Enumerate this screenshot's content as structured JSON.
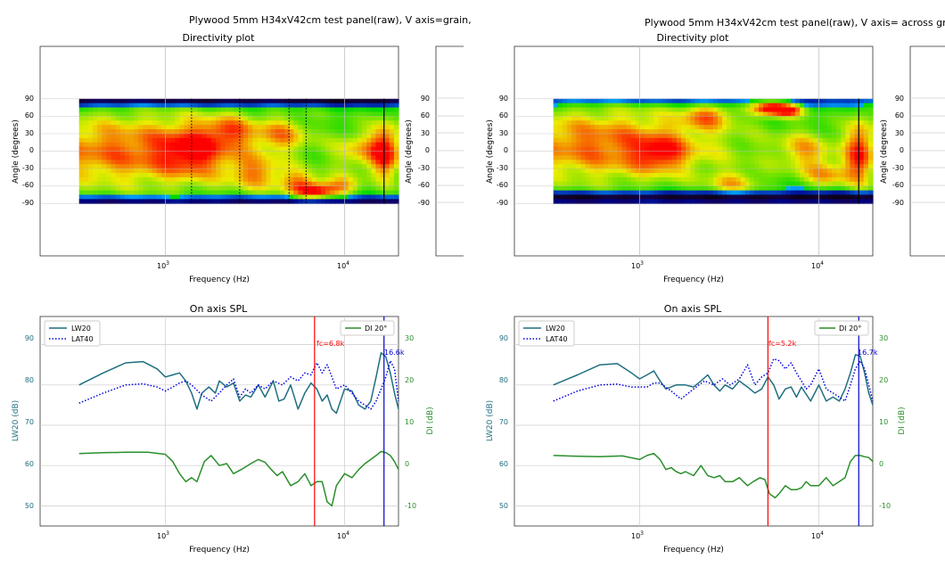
{
  "figures": [
    {
      "suptitle": "Plywood 5mm H34xV42cm test panel(raw), V axis=grain,",
      "directivity": {
        "title": "Directivity plot",
        "xlabel": "Frequency (Hz)",
        "ylabel": "Angle (degrees)",
        "ytick_labels": [
          "90",
          "60",
          "30",
          "0",
          "-30",
          "-60",
          "-90"
        ],
        "xtick_labels": [
          "10",
          "10"
        ],
        "xtick_exponents": [
          "3",
          "4"
        ]
      },
      "spl": {
        "title": "On axis SPL",
        "xlabel": "Frequency (Hz)",
        "ylabel_left": "LW20 (dB)",
        "ylabel_right": "DI (dB)",
        "left_ticks": [
          "50",
          "60",
          "70",
          "80",
          "90"
        ],
        "right_ticks": [
          "-10",
          "0",
          "10",
          "20",
          "30"
        ],
        "xtick_labels": [
          "10",
          "10"
        ],
        "xtick_exponents": [
          "3",
          "4"
        ],
        "legend_left": [
          "LW20",
          "LAT40"
        ],
        "legend_right": [
          "DI 20°"
        ],
        "fc_label": "fc=6.8k",
        "peak_label": "16.6k"
      }
    },
    {
      "suptitle": "Plywood 5mm H34xV42cm test panel(raw), V axis= across gr",
      "directivity": {
        "title": "Directivity plot",
        "xlabel": "Frequency (Hz)",
        "ylabel": "Angle (degrees)",
        "ytick_labels": [
          "90",
          "60",
          "30",
          "0",
          "-30",
          "-60",
          "-90"
        ],
        "xtick_labels": [
          "10",
          "10"
        ],
        "xtick_exponents": [
          "3",
          "4"
        ]
      },
      "spl": {
        "title": "On axis SPL",
        "xlabel": "Frequency (Hz)",
        "ylabel_left": "LW20 (dB)",
        "ylabel_right": "DI (dB)",
        "left_ticks": [
          "50",
          "60",
          "70",
          "80",
          "90"
        ],
        "right_ticks": [
          "-10",
          "0",
          "10",
          "20",
          "30"
        ],
        "xtick_labels": [
          "10",
          "10"
        ],
        "xtick_exponents": [
          "3",
          "4"
        ],
        "legend_left": [
          "LW20",
          "LAT40"
        ],
        "legend_right": [
          "DI 20°"
        ],
        "fc_label": "fc=5.2k",
        "peak_label": "16.7k"
      }
    }
  ],
  "chart_data": [
    {
      "type": "heatmap",
      "title": "Directivity plot",
      "xlabel": "Frequency (Hz)",
      "ylabel": "Angle (degrees)",
      "x_scale": "log",
      "xlim": [
        200,
        20000
      ],
      "ylim": [
        -180,
        180
      ],
      "yticks": [
        90,
        60,
        30,
        0,
        -30,
        -60,
        -90
      ],
      "extent_x": [
        330,
        20000
      ],
      "extent_y": [
        -90,
        90
      ],
      "vertical_markers_hz": [
        1400,
        2600,
        4900,
        6100
      ],
      "vertical_marker_style": "dotted",
      "solid_marker_hz": 16600,
      "hotspots": [
        {
          "freq_hz": 650,
          "angle_deg": 0,
          "level": 0.72,
          "sigma_f": 0.55,
          "sigma_a": 45
        },
        {
          "freq_hz": 1400,
          "angle_deg": 0,
          "level": 0.45,
          "sigma_f": 0.12,
          "sigma_a": 30
        },
        {
          "freq_hz": 2300,
          "angle_deg": 35,
          "level": 0.45,
          "sigma_f": 0.1,
          "sigma_a": 20
        },
        {
          "freq_hz": 3200,
          "angle_deg": -40,
          "level": 0.45,
          "sigma_f": 0.1,
          "sigma_a": 20
        },
        {
          "freq_hz": 4500,
          "angle_deg": 30,
          "level": 0.45,
          "sigma_f": 0.1,
          "sigma_a": 20
        },
        {
          "freq_hz": 5500,
          "angle_deg": -55,
          "level": 0.55,
          "sigma_f": 0.08,
          "sigma_a": 15
        },
        {
          "freq_hz": 7000,
          "angle_deg": -70,
          "level": 0.75,
          "sigma_f": 0.08,
          "sigma_a": 10
        },
        {
          "freq_hz": 9500,
          "angle_deg": -60,
          "level": 0.5,
          "sigma_f": 0.08,
          "sigma_a": 12
        },
        {
          "freq_hz": 12000,
          "angle_deg": 0,
          "level": 0.45,
          "sigma_f": 0.1,
          "sigma_a": 25
        },
        {
          "freq_hz": 17000,
          "angle_deg": 0,
          "level": 0.85,
          "sigma_f": 0.06,
          "sigma_a": 35
        }
      ],
      "cold_bands": [
        {
          "angle_deg": 88,
          "freq_from_hz": 330,
          "freq_to_hz": 20000,
          "level": -0.5
        },
        {
          "angle_deg": -88,
          "freq_from_hz": 330,
          "freq_to_hz": 20000,
          "level": -0.4
        }
      ]
    },
    {
      "type": "line",
      "title": "On axis SPL",
      "xlabel": "Frequency (Hz)",
      "x_scale": "log",
      "xlim": [
        200,
        20000
      ],
      "y_left": {
        "label": "LW20 (dB)",
        "lim": [
          45,
          97
        ]
      },
      "y_right": {
        "label": "DI (dB)",
        "lim": [
          -15,
          37
        ]
      },
      "grid": true,
      "legend_left_position": "top-left",
      "legend_right_position": "top-right",
      "vertical_lines": [
        {
          "freq_hz": 6800,
          "label": "fc=6.8k",
          "color": "#ff0000"
        },
        {
          "freq_hz": 16600,
          "label": "16.6k",
          "color": "#0000cc"
        }
      ],
      "series": [
        {
          "name": "LW20",
          "axis": "left",
          "color": "#1f6f80",
          "style": "solid",
          "x": [
            330,
            450,
            600,
            750,
            900,
            1000,
            1100,
            1200,
            1300,
            1400,
            1500,
            1600,
            1750,
            1900,
            2000,
            2200,
            2400,
            2600,
            2800,
            3000,
            3300,
            3600,
            4000,
            4300,
            4600,
            5000,
            5500,
            6000,
            6500,
            7000,
            7500,
            8000,
            8500,
            9000,
            10000,
            11000,
            12000,
            13000,
            14000,
            15000,
            16000,
            17000,
            18000,
            19000,
            20000
          ],
          "y": [
            80,
            83,
            85.5,
            85.8,
            84,
            82,
            82.5,
            83,
            81,
            78,
            74,
            78,
            79.5,
            78,
            81,
            79.5,
            80.5,
            76,
            77.5,
            77,
            80,
            77,
            81,
            76,
            76.5,
            80,
            74,
            78,
            80.5,
            79,
            76,
            77.5,
            74,
            73,
            79,
            78.5,
            75,
            74,
            76,
            82,
            88,
            87,
            83,
            78,
            74
          ]
        },
        {
          "name": "LAT40",
          "axis": "left",
          "color": "#0000dd",
          "style": "dotted",
          "x": [
            330,
            450,
            600,
            750,
            900,
            1000,
            1100,
            1200,
            1300,
            1400,
            1600,
            1800,
            2000,
            2200,
            2400,
            2600,
            2800,
            3000,
            3300,
            3600,
            4000,
            4500,
            5000,
            5500,
            6000,
            6500,
            7000,
            7500,
            8000,
            8500,
            9000,
            10000,
            11000,
            12000,
            13000,
            14000,
            15000,
            16000,
            17000,
            18000,
            19000,
            20000
          ],
          "y": [
            75.5,
            78,
            80,
            80.3,
            79.5,
            78.5,
            79.5,
            80.5,
            81,
            80,
            77.5,
            76,
            78,
            80,
            81.5,
            77,
            79,
            78,
            80,
            79,
            81,
            80,
            82,
            81,
            83,
            82.5,
            85.5,
            83,
            85,
            82,
            79,
            80,
            78,
            76,
            75,
            74,
            76,
            79,
            82,
            86,
            84,
            76
          ]
        },
        {
          "name": "DI 20°",
          "axis": "right",
          "color": "#2a8f2a",
          "style": "solid",
          "x": [
            330,
            450,
            600,
            800,
            1000,
            1100,
            1200,
            1300,
            1400,
            1500,
            1650,
            1800,
            2000,
            2200,
            2400,
            2700,
            3000,
            3300,
            3600,
            3900,
            4200,
            4500,
            5000,
            5500,
            6000,
            6500,
            7000,
            7500,
            8000,
            8500,
            9000,
            10000,
            11000,
            12000,
            13000,
            14000,
            15000,
            16000,
            17000,
            18000,
            19000,
            20000
          ],
          "y": [
            3,
            3.2,
            3.3,
            3.3,
            2.8,
            1,
            -2,
            -4,
            -3,
            -4,
            1,
            2.5,
            0,
            0.5,
            -2,
            -0.8,
            0.5,
            1.5,
            0.8,
            -1,
            -2.5,
            -1.5,
            -5,
            -4,
            -2,
            -5,
            -4,
            -4,
            -9,
            -10,
            -5,
            -2,
            -3,
            -1,
            0.5,
            1.5,
            2.5,
            3.5,
            3.2,
            2.5,
            1,
            -1
          ]
        }
      ]
    },
    {
      "type": "heatmap",
      "title": "Directivity plot",
      "xlabel": "Frequency (Hz)",
      "ylabel": "Angle (degrees)",
      "x_scale": "log",
      "xlim": [
        200,
        20000
      ],
      "ylim": [
        -180,
        180
      ],
      "yticks": [
        90,
        60,
        30,
        0,
        -30,
        -60,
        -90
      ],
      "extent_x": [
        330,
        20000
      ],
      "extent_y": [
        -90,
        90
      ],
      "vertical_markers_hz": [],
      "vertical_marker_style": "dotted",
      "solid_marker_hz": 16700,
      "hotspots": [
        {
          "freq_hz": 650,
          "angle_deg": 10,
          "level": 0.72,
          "sigma_f": 0.5,
          "sigma_a": 45
        },
        {
          "freq_hz": 1300,
          "angle_deg": -5,
          "level": 0.45,
          "sigma_f": 0.1,
          "sigma_a": 20
        },
        {
          "freq_hz": 2400,
          "angle_deg": 60,
          "level": 0.5,
          "sigma_f": 0.1,
          "sigma_a": 15
        },
        {
          "freq_hz": 3400,
          "angle_deg": -55,
          "level": 0.45,
          "sigma_f": 0.1,
          "sigma_a": 15
        },
        {
          "freq_hz": 5300,
          "angle_deg": 75,
          "level": 0.95,
          "sigma_f": 0.07,
          "sigma_a": 10
        },
        {
          "freq_hz": 6800,
          "angle_deg": 70,
          "level": 0.75,
          "sigma_f": 0.06,
          "sigma_a": 8
        },
        {
          "freq_hz": 8500,
          "angle_deg": 0,
          "level": 0.5,
          "sigma_f": 0.12,
          "sigma_a": 25
        },
        {
          "freq_hz": 11500,
          "angle_deg": -40,
          "level": 0.5,
          "sigma_f": 0.1,
          "sigma_a": 15
        },
        {
          "freq_hz": 17000,
          "angle_deg": 0,
          "level": 0.85,
          "sigma_f": 0.06,
          "sigma_a": 40
        }
      ],
      "cold_bands": [
        {
          "angle_deg": -80,
          "freq_from_hz": 330,
          "freq_to_hz": 20000,
          "level": -0.55
        },
        {
          "angle_deg": 88,
          "freq_from_hz": 330,
          "freq_to_hz": 20000,
          "level": -0.2
        }
      ]
    },
    {
      "type": "line",
      "title": "On axis SPL",
      "xlabel": "Frequency (Hz)",
      "x_scale": "log",
      "xlim": [
        200,
        20000
      ],
      "y_left": {
        "label": "LW20 (dB)",
        "lim": [
          45,
          97
        ]
      },
      "y_right": {
        "label": "DI (dB)",
        "lim": [
          -15,
          37
        ]
      },
      "grid": true,
      "legend_left_position": "top-left",
      "legend_right_position": "top-right",
      "vertical_lines": [
        {
          "freq_hz": 5200,
          "label": "fc=5.2k",
          "color": "#ff0000"
        },
        {
          "freq_hz": 16700,
          "label": "16.7k",
          "color": "#0000cc"
        }
      ],
      "series": [
        {
          "name": "LW20",
          "axis": "left",
          "color": "#1f6f80",
          "style": "solid",
          "x": [
            330,
            450,
            600,
            750,
            900,
            1000,
            1100,
            1200,
            1300,
            1400,
            1600,
            1800,
            2000,
            2200,
            2400,
            2600,
            2800,
            3000,
            3300,
            3600,
            4000,
            4400,
            4800,
            5200,
            5600,
            6000,
            6500,
            7000,
            7500,
            8000,
            9000,
            10000,
            11000,
            12000,
            13000,
            14000,
            15000,
            16000,
            17000,
            18000,
            19000,
            20000
          ],
          "y": [
            80,
            82.5,
            85,
            85.3,
            83,
            81.5,
            82.5,
            83.5,
            81,
            79,
            80,
            80,
            79.5,
            81,
            82.5,
            80,
            78.5,
            80,
            79,
            81,
            79.5,
            78,
            79,
            82,
            80,
            76.5,
            79,
            79.5,
            77,
            79.5,
            76,
            80,
            76,
            77,
            76,
            79,
            83,
            87.5,
            87.2,
            83,
            78,
            75
          ]
        },
        {
          "name": "LAT40",
          "axis": "left",
          "color": "#0000dd",
          "style": "dotted",
          "x": [
            330,
            450,
            600,
            750,
            900,
            1000,
            1100,
            1200,
            1300,
            1500,
            1700,
            2000,
            2300,
            2600,
            2900,
            3200,
            3600,
            4000,
            4400,
            4800,
            5200,
            5600,
            6000,
            6500,
            7000,
            7500,
            8000,
            8500,
            9000,
            10000,
            11000,
            12000,
            13000,
            14000,
            15000,
            16000,
            17000,
            18000,
            19000,
            20000
          ],
          "y": [
            76,
            78.5,
            80,
            80.2,
            79.5,
            79.5,
            79.5,
            80.5,
            80.5,
            78.5,
            76.5,
            79,
            81,
            80,
            81.5,
            80,
            81.5,
            85,
            80,
            82,
            83,
            86.5,
            86,
            84,
            85.5,
            83,
            81,
            79,
            80,
            84,
            79,
            78,
            77,
            76,
            80,
            84,
            86,
            84,
            80,
            76
          ]
        },
        {
          "name": "DI 20°",
          "axis": "right",
          "color": "#2a8f2a",
          "style": "solid",
          "x": [
            330,
            450,
            600,
            800,
            1000,
            1100,
            1200,
            1300,
            1400,
            1500,
            1600,
            1700,
            1800,
            2000,
            2200,
            2400,
            2600,
            2800,
            3000,
            3300,
            3600,
            4000,
            4300,
            4700,
            5000,
            5300,
            5700,
            6000,
            6500,
            7000,
            7500,
            8000,
            8500,
            9000,
            10000,
            11000,
            12000,
            13000,
            14000,
            15000,
            16000,
            17000,
            18000,
            19000,
            20000
          ],
          "y": [
            2.5,
            2.3,
            2.2,
            2.4,
            1.5,
            2.5,
            3,
            1.5,
            -1,
            -0.5,
            -1.5,
            -2,
            -1.5,
            -2.5,
            0,
            -2.5,
            -3,
            -2.5,
            -4,
            -4,
            -3,
            -5,
            -4,
            -3,
            -3.5,
            -7,
            -8,
            -7,
            -5,
            -6,
            -6,
            -5.5,
            -4,
            -5,
            -5,
            -3,
            -5,
            -4,
            -3,
            1,
            2.5,
            2.5,
            2.2,
            2,
            1
          ]
        }
      ]
    }
  ]
}
